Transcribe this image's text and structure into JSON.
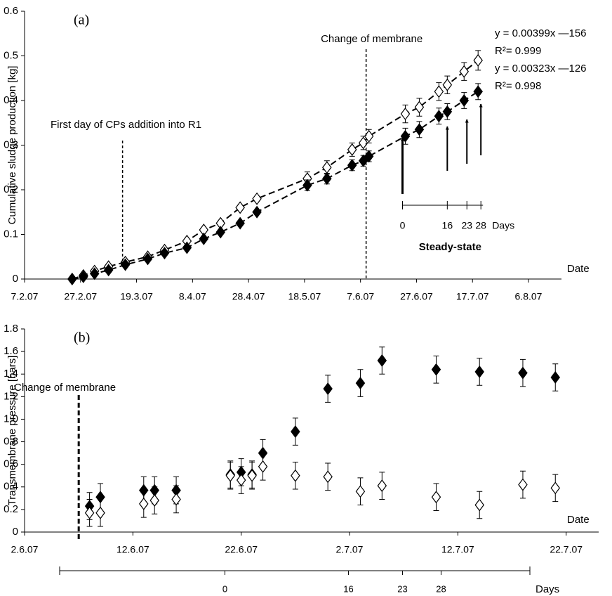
{
  "chart_data": [
    {
      "type": "scatter",
      "title": "(a)",
      "ylabel": "Cumulative sludge production [kg]",
      "xlabel": "Date",
      "xlim": [
        "2007-02-07",
        "2007-08-06"
      ],
      "xticks": [
        {
          "value": "2007-02-07",
          "label": "7.2.07"
        },
        {
          "value": "2007-02-27",
          "label": "27.2.07"
        },
        {
          "value": "2007-03-19",
          "label": "19.3.07"
        },
        {
          "value": "2007-04-08",
          "label": "8.4.07"
        },
        {
          "value": "2007-04-28",
          "label": "28.4.07"
        },
        {
          "value": "2007-05-18",
          "label": "18.5.07"
        },
        {
          "value": "2007-06-07",
          "label": "7.6.07"
        },
        {
          "value": "2007-06-27",
          "label": "27.6.07"
        },
        {
          "value": "2007-07-17",
          "label": "17.7.07"
        },
        {
          "value": "2007-08-06",
          "label": "6.8.07"
        }
      ],
      "ylim": [
        0,
        0.6
      ],
      "yticks": [
        0,
        0.1,
        0.2,
        0.3,
        0.4,
        0.5,
        0.6
      ],
      "line": "dashed",
      "x": [
        "2007-02-24",
        "2007-02-28",
        "2007-03-04",
        "2007-03-09",
        "2007-03-15",
        "2007-03-23",
        "2007-03-29",
        "2007-04-06",
        "2007-04-12",
        "2007-04-18",
        "2007-04-25",
        "2007-05-01",
        "2007-05-19",
        "2007-05-26",
        "2007-06-04",
        "2007-06-08",
        "2007-06-10",
        "2007-06-23",
        "2007-06-28",
        "2007-07-05",
        "2007-07-08",
        "2007-07-14",
        "2007-07-19"
      ],
      "series": [
        {
          "color": "#ffffff",
          "values": [
            0,
            0.008,
            0.018,
            0.028,
            0.038,
            0.05,
            0.065,
            0.085,
            0.11,
            0.125,
            0.16,
            0.18,
            0.225,
            0.25,
            0.29,
            0.305,
            0.32,
            0.37,
            0.385,
            0.42,
            0.435,
            0.465,
            0.49
          ],
          "errors": [
            0.005,
            0.005,
            0.005,
            0.005,
            0.005,
            0.005,
            0.005,
            0.005,
            0.005,
            0.005,
            0.005,
            0.005,
            0.015,
            0.015,
            0.015,
            0.015,
            0.015,
            0.02,
            0.02,
            0.02,
            0.02,
            0.02,
            0.022
          ]
        },
        {
          "color": "#000000",
          "values": [
            0,
            0.005,
            0.012,
            0.02,
            0.032,
            0.045,
            0.058,
            0.07,
            0.09,
            0.105,
            0.125,
            0.15,
            0.21,
            0.225,
            0.255,
            0.265,
            0.275,
            0.32,
            0.335,
            0.365,
            0.375,
            0.4,
            0.42
          ],
          "errors": [
            0.005,
            0.005,
            0.005,
            0.005,
            0.005,
            0.005,
            0.005,
            0.005,
            0.005,
            0.005,
            0.005,
            0.005,
            0.012,
            0.012,
            0.012,
            0.012,
            0.012,
            0.018,
            0.018,
            0.018,
            0.018,
            0.018,
            0.018
          ]
        }
      ],
      "fits": [
        {
          "equation": "y = 0.00399x —156",
          "r2": "R²= 0.999"
        },
        {
          "equation": "y = 0.00323x —126",
          "r2": "R²= 0.998"
        }
      ],
      "membrane_change": {
        "label": "Change of membrane",
        "x": "2007-06-09"
      },
      "cp_addition": {
        "label": "First day of CPs addition into R1",
        "x": "2007-03-14",
        "y": 0.025
      },
      "days_axis": {
        "origin": "2007-06-22",
        "ticks": [
          0,
          16,
          23,
          28
        ],
        "label": "Days",
        "title": "Steady-state"
      }
    },
    {
      "type": "scatter",
      "title": "(b)",
      "ylabel": "Transmembrane pressure [bars]",
      "xlabel": "Date",
      "xlim": [
        "2007-06-02",
        "2007-07-25"
      ],
      "xticks": [
        {
          "value": "2007-06-02",
          "label": "2.6.07"
        },
        {
          "value": "2007-06-12",
          "label": "12.6.07"
        },
        {
          "value": "2007-06-22",
          "label": "22.6.07"
        },
        {
          "value": "2007-07-02",
          "label": "2.7.07"
        },
        {
          "value": "2007-07-12",
          "label": "12.7.07"
        },
        {
          "value": "2007-07-22",
          "label": "22.7.07"
        }
      ],
      "ylim": [
        0,
        1.8
      ],
      "yticks": [
        0,
        0.2,
        0.4,
        0.6,
        0.8,
        {
          "value": 1,
          "label": "1.0"
        },
        1.2,
        1.4,
        1.6,
        1.8
      ],
      "x": [
        "2007-06-08",
        "2007-06-09",
        "2007-06-13",
        "2007-06-14",
        "2007-06-16",
        "2007-06-21",
        "2007-06-22",
        "2007-06-23",
        "2007-06-24",
        "2007-06-27",
        "2007-06-30",
        "2007-07-03",
        "2007-07-05",
        "2007-07-10",
        "2007-07-14",
        "2007-07-18",
        "2007-07-21"
      ],
      "series": [
        {
          "color": "#000000",
          "values": [
            0.23,
            0.31,
            0.37,
            0.37,
            0.37,
            0.51,
            0.53,
            0.51,
            0.7,
            0.89,
            1.27,
            1.32,
            1.52,
            1.44,
            1.42,
            1.41,
            1.37
          ],
          "errors": [
            0.12,
            0.12,
            0.12,
            0.12,
            0.12,
            0.12,
            0.12,
            0.12,
            0.12,
            0.12,
            0.12,
            0.12,
            0.12,
            0.12,
            0.12,
            0.12,
            0.12
          ]
        },
        {
          "color": "#ffffff",
          "values": [
            0.17,
            0.17,
            0.25,
            0.28,
            0.29,
            0.5,
            0.46,
            0.5,
            0.58,
            0.5,
            0.49,
            0.36,
            0.41,
            0.31,
            0.24,
            0.42,
            0.39
          ],
          "errors": [
            0.12,
            0.12,
            0.12,
            0.12,
            0.12,
            0.12,
            0.12,
            0.12,
            0.12,
            0.12,
            0.12,
            0.12,
            0.12,
            0.12,
            0.12,
            0.12,
            0.12
          ]
        }
      ],
      "membrane_change": {
        "label": "Change of membrane",
        "x": "2007-06-07"
      },
      "days_scale": {
        "xlim": [
          -21.4,
          39.5
        ],
        "ticks": [
          0,
          16,
          23,
          28
        ],
        "label": "Days"
      }
    }
  ]
}
